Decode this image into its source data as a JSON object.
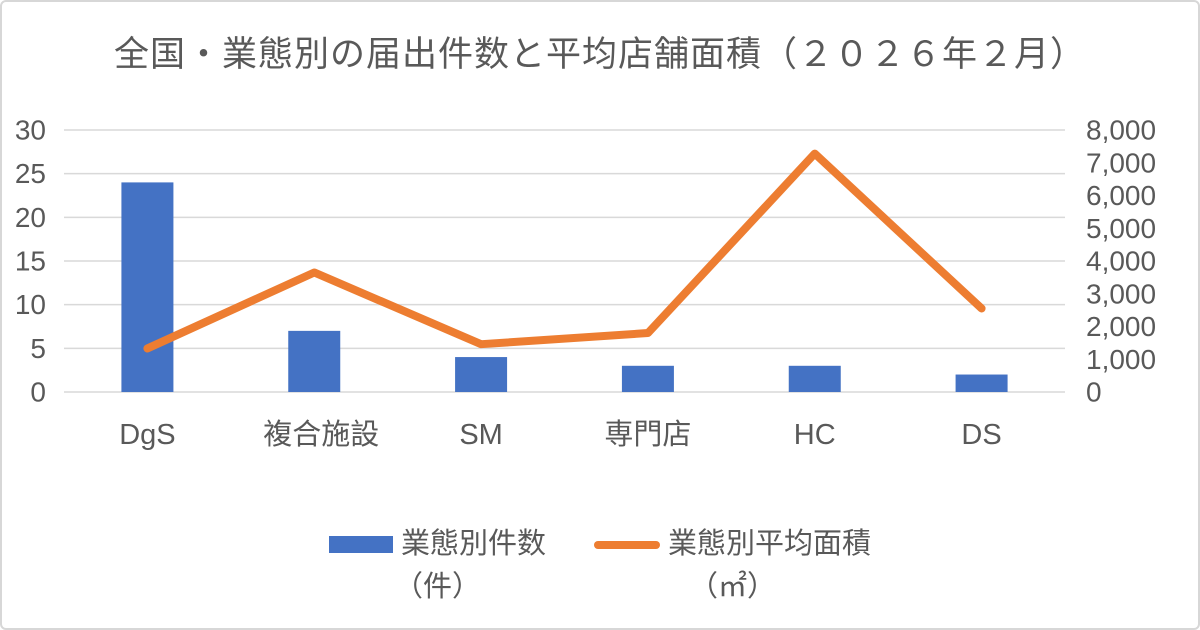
{
  "title": "全国・業態別の届出件数と平均店舗面積（２０２６年２月）",
  "chart_data": {
    "type": "combo-bar-line",
    "title": "全国・業態別の届出件数と平均店舗面積（２０２６年２月）",
    "categories": [
      "DgS",
      "複合施設",
      "SM",
      "専門店",
      "HC",
      "DS"
    ],
    "series": [
      {
        "name": "業態別件数（件）",
        "type": "bar",
        "axis": "left",
        "color": "#4472C4",
        "values": [
          24,
          7,
          4,
          3,
          3,
          2
        ]
      },
      {
        "name": "業態別平均面積（㎡）",
        "type": "line",
        "axis": "right",
        "color": "#ED7D31",
        "values": [
          1330,
          3650,
          1460,
          1800,
          7280,
          2550
        ]
      }
    ],
    "left_axis": {
      "min": 0,
      "max": 30,
      "step": 5,
      "tick_labels": [
        "0",
        "5",
        "10",
        "15",
        "20",
        "25",
        "30"
      ]
    },
    "right_axis": {
      "min": 0,
      "max": 8000,
      "step": 1000,
      "tick_labels": [
        "0",
        "1,000",
        "2,000",
        "3,000",
        "4,000",
        "5,000",
        "6,000",
        "7,000",
        "8,000"
      ]
    },
    "grid": true,
    "legend_position": "bottom",
    "colors": {
      "text": "#595959",
      "gridline": "#d9d9d9",
      "background": "#ffffff"
    }
  },
  "legend": {
    "items": [
      {
        "label": "業態別件数",
        "unit": "（件）",
        "color": "#4472C4"
      },
      {
        "label": "業態別平均面積",
        "unit": "（㎡）",
        "color": "#ED7D31"
      }
    ]
  }
}
